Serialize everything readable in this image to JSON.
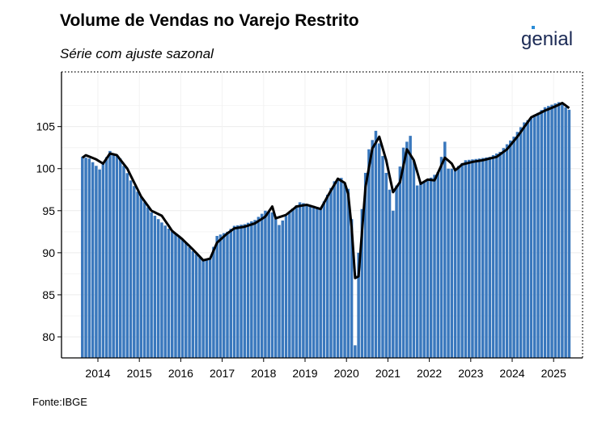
{
  "title": "Volume de Vendas no Varejo Restrito",
  "subtitle": "Série com ajuste sazonal",
  "source": "Fonte:IBGE",
  "brand": {
    "name": "genial",
    "icon": "genial-logo"
  },
  "colors": {
    "bars": "#3a78bd",
    "line": "#000000",
    "brand": "#1b2a55",
    "grid": "#ececec"
  },
  "chart_data": {
    "type": "bar",
    "title": "Volume de Vendas no Varejo Restrito",
    "subtitle": "Série com ajuste sazonal",
    "xlabel": "",
    "ylabel": "",
    "x_ticks": [
      "2014",
      "2015",
      "2016",
      "2017",
      "2018",
      "2019",
      "2020",
      "2021",
      "2022",
      "2023",
      "2024",
      "2025"
    ],
    "y_ticks": [
      80,
      85,
      90,
      95,
      100,
      105
    ],
    "ylim": [
      77.5,
      111.5
    ],
    "grid": true,
    "legend": "none",
    "series": [
      {
        "type": "bar",
        "start": "2013-08",
        "frequency": "monthly",
        "anchors": [
          [
            "2013-08",
            101.4
          ],
          [
            "2013-10",
            101.2
          ],
          [
            "2014-01",
            99.9
          ],
          [
            "2014-04",
            102.1
          ],
          [
            "2014-07",
            101.2
          ],
          [
            "2014-10",
            98.6
          ],
          [
            "2015-01",
            96.6
          ],
          [
            "2015-04",
            94.8
          ],
          [
            "2015-07",
            93.6
          ],
          [
            "2015-10",
            92.5
          ],
          [
            "2016-01",
            91.6
          ],
          [
            "2016-04",
            90.2
          ],
          [
            "2016-07",
            89.1
          ],
          [
            "2016-09",
            89.4
          ],
          [
            "2016-11",
            92.0
          ],
          [
            "2017-02",
            92.5
          ],
          [
            "2017-04",
            93.2
          ],
          [
            "2017-07",
            93.4
          ],
          [
            "2017-10",
            93.9
          ],
          [
            "2018-01",
            95.0
          ],
          [
            "2018-03",
            94.8
          ],
          [
            "2018-05",
            93.3
          ],
          [
            "2018-08",
            94.9
          ],
          [
            "2018-11",
            96.0
          ],
          [
            "2019-02",
            95.7
          ],
          [
            "2019-05",
            95.3
          ],
          [
            "2019-09",
            98.5
          ],
          [
            "2019-11",
            98.9
          ],
          [
            "2020-01",
            97.6
          ],
          [
            "2020-02",
            94.0
          ],
          [
            "2020-03",
            79.0
          ],
          [
            "2020-04",
            90.0
          ],
          [
            "2020-05",
            95.2
          ],
          [
            "2020-06",
            99.5
          ],
          [
            "2020-07",
            102.3
          ],
          [
            "2020-09",
            104.5
          ],
          [
            "2020-11",
            101.5
          ],
          [
            "2021-01",
            97.5
          ],
          [
            "2021-02",
            95.0
          ],
          [
            "2021-03",
            98.0
          ],
          [
            "2021-05",
            102.5
          ],
          [
            "2021-07",
            103.9
          ],
          [
            "2021-09",
            98.0
          ],
          [
            "2021-12",
            98.6
          ],
          [
            "2022-03",
            99.6
          ],
          [
            "2022-05",
            103.2
          ],
          [
            "2022-06",
            100.0
          ],
          [
            "2022-08",
            100.0
          ],
          [
            "2022-11",
            101.0
          ],
          [
            "2023-03",
            101.2
          ],
          [
            "2023-06",
            101.4
          ],
          [
            "2023-09",
            102.0
          ],
          [
            "2024-01",
            103.8
          ],
          [
            "2024-04",
            105.5
          ],
          [
            "2024-07",
            106.3
          ],
          [
            "2024-10",
            107.3
          ],
          [
            "2025-02",
            107.9
          ],
          [
            "2025-05",
            107.0
          ]
        ]
      },
      {
        "type": "line",
        "start": "2013-08",
        "frequency": "monthly",
        "anchors": [
          [
            "2013-08",
            101.3
          ],
          [
            "2013-09",
            101.6
          ],
          [
            "2013-12",
            101.1
          ],
          [
            "2014-02",
            100.6
          ],
          [
            "2014-04",
            101.8
          ],
          [
            "2014-06",
            101.6
          ],
          [
            "2014-09",
            100.0
          ],
          [
            "2015-01",
            96.7
          ],
          [
            "2015-04",
            95.0
          ],
          [
            "2015-07",
            94.4
          ],
          [
            "2015-10",
            92.6
          ],
          [
            "2016-01",
            91.6
          ],
          [
            "2016-04",
            90.4
          ],
          [
            "2016-07",
            89.1
          ],
          [
            "2016-09",
            89.3
          ],
          [
            "2016-11",
            91.2
          ],
          [
            "2017-02",
            92.3
          ],
          [
            "2017-04",
            92.9
          ],
          [
            "2017-07",
            93.1
          ],
          [
            "2017-10",
            93.5
          ],
          [
            "2018-01",
            94.3
          ],
          [
            "2018-03",
            95.5
          ],
          [
            "2018-04",
            94.1
          ],
          [
            "2018-07",
            94.5
          ],
          [
            "2018-10",
            95.5
          ],
          [
            "2019-01",
            95.7
          ],
          [
            "2019-05",
            95.2
          ],
          [
            "2019-08",
            97.4
          ],
          [
            "2019-10",
            98.8
          ],
          [
            "2019-12",
            98.3
          ],
          [
            "2020-01",
            97.0
          ],
          [
            "2020-02",
            93.0
          ],
          [
            "2020-03",
            87.0
          ],
          [
            "2020-04",
            87.2
          ],
          [
            "2020-06",
            97.8
          ],
          [
            "2020-08",
            102.4
          ],
          [
            "2020-10",
            103.8
          ],
          [
            "2020-12",
            101.0
          ],
          [
            "2021-02",
            97.2
          ],
          [
            "2021-04",
            98.4
          ],
          [
            "2021-06",
            102.3
          ],
          [
            "2021-08",
            101.0
          ],
          [
            "2021-10",
            98.2
          ],
          [
            "2021-12",
            98.7
          ],
          [
            "2022-02",
            98.6
          ],
          [
            "2022-05",
            101.3
          ],
          [
            "2022-07",
            100.6
          ],
          [
            "2022-08",
            99.8
          ],
          [
            "2022-10",
            100.5
          ],
          [
            "2023-01",
            100.8
          ],
          [
            "2023-04",
            101.0
          ],
          [
            "2023-08",
            101.4
          ],
          [
            "2023-11",
            102.3
          ],
          [
            "2024-02",
            103.8
          ],
          [
            "2024-06",
            106.1
          ],
          [
            "2024-10",
            106.9
          ],
          [
            "2025-01",
            107.4
          ],
          [
            "2025-03",
            107.8
          ],
          [
            "2025-05",
            107.2
          ]
        ]
      }
    ]
  }
}
